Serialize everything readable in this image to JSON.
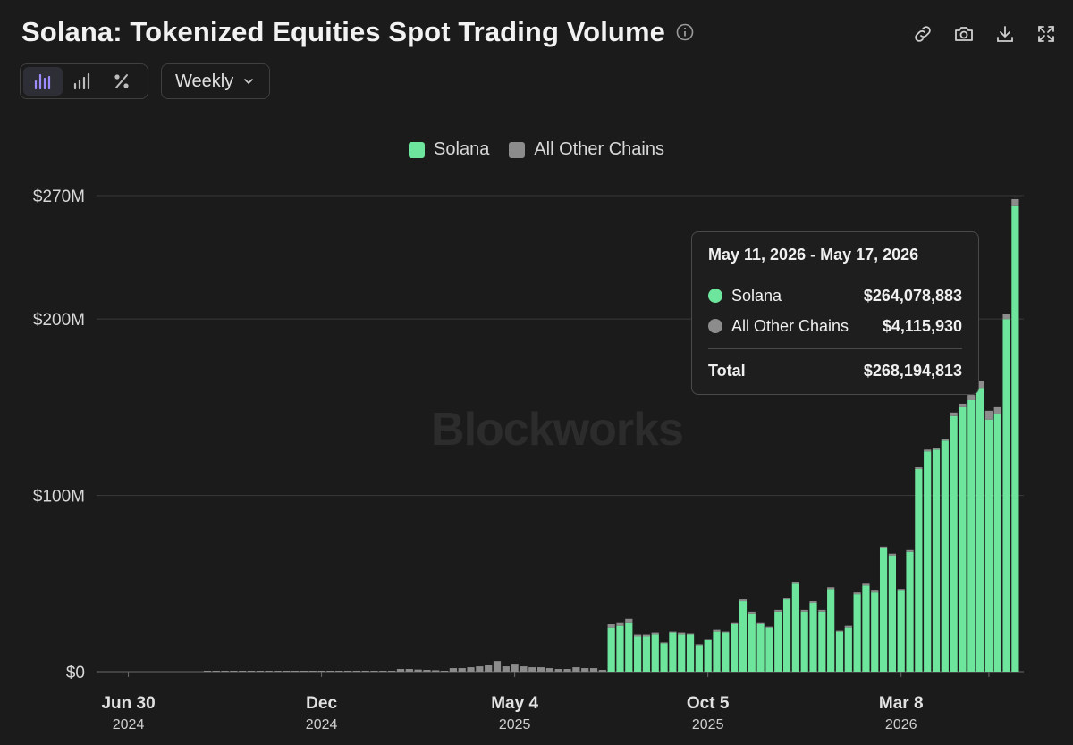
{
  "header": {
    "title": "Solana: Tokenized Equities Spot Trading Volume",
    "info_icon": "info-circle-icon",
    "icons": [
      "link-icon",
      "camera-icon",
      "download-icon",
      "expand-icon"
    ]
  },
  "controls": {
    "toggles": [
      "stacked-bars-icon",
      "bar-chart-icon",
      "percent-icon"
    ],
    "period": "Weekly"
  },
  "legend": [
    {
      "name": "Solana",
      "color": "#6ee59c"
    },
    {
      "name": "All Other Chains",
      "color": "#8c8c8c"
    }
  ],
  "watermark": "Blockworks",
  "tooltip": {
    "range": "May 11, 2026 - May 17, 2026",
    "rows": [
      {
        "name": "Solana",
        "value": "$264,078,883",
        "color": "#6ee59c"
      },
      {
        "name": "All Other Chains",
        "value": "$4,115,930",
        "color": "#8c8c8c"
      }
    ],
    "total_label": "Total",
    "total_value": "$268,194,813"
  },
  "chart_data": {
    "type": "bar",
    "stacked": true,
    "ylim": [
      0,
      270
    ],
    "y_unit": "$M",
    "y_ticks": [
      {
        "value": 0,
        "label": "$0"
      },
      {
        "value": 100,
        "label": "$100M"
      },
      {
        "value": 200,
        "label": "$200M"
      },
      {
        "value": 270,
        "label": "$270M"
      }
    ],
    "x_ticks": [
      {
        "label": "Jun 30",
        "year": "2024",
        "index": 3
      },
      {
        "label": "Dec",
        "year": "2024",
        "index": 25
      },
      {
        "label": "May 4",
        "year": "2025",
        "index": 47
      },
      {
        "label": "Oct 5",
        "year": "2025",
        "index": 69
      },
      {
        "label": "Mar 8",
        "year": "2026",
        "index": 91
      },
      {
        "label": "",
        "year": "",
        "index": 101
      }
    ],
    "series": [
      {
        "name": "Solana",
        "color": "#6ee59c",
        "values": [
          0,
          0,
          0,
          0,
          0,
          0,
          0,
          0,
          0,
          0,
          0,
          0,
          0,
          0,
          0,
          0,
          0,
          0,
          0,
          0,
          0,
          0,
          0,
          0,
          0,
          0,
          0,
          0,
          0,
          0,
          0,
          0,
          0,
          0,
          0,
          0,
          0,
          0,
          0,
          0,
          0,
          0,
          0,
          0,
          0,
          0,
          0,
          0,
          0,
          0,
          0,
          0,
          0,
          0,
          0,
          0,
          0,
          0,
          25,
          26,
          28,
          20,
          20,
          21,
          16,
          22,
          21,
          21,
          15,
          18,
          23,
          22,
          27,
          40,
          33,
          27,
          25,
          34,
          41,
          50,
          34,
          39,
          34,
          47,
          23,
          25,
          44,
          49,
          45,
          70,
          66,
          46,
          68,
          115,
          125,
          126,
          131,
          145,
          150,
          154,
          161,
          143,
          146,
          200,
          264
        ]
      },
      {
        "name": "All Other Chains",
        "color": "#8c8c8c",
        "values": [
          0,
          0,
          0,
          0,
          0,
          0,
          0,
          0,
          0,
          0,
          0,
          0,
          0.1,
          0.1,
          0.1,
          0.1,
          0.1,
          0.1,
          0.1,
          0.1,
          0.1,
          0.1,
          0.1,
          0.1,
          0.1,
          0.1,
          0.1,
          0.1,
          0.1,
          0.1,
          0.1,
          0.1,
          0.1,
          0.1,
          1.5,
          1.5,
          1.2,
          1,
          0.8,
          0.5,
          2,
          2,
          2.5,
          3,
          4,
          6,
          3,
          4.5,
          3,
          2.5,
          2.5,
          2,
          1.5,
          1.5,
          2.5,
          2,
          2,
          1,
          2,
          2,
          2,
          1,
          1,
          1,
          0.5,
          1,
          1,
          0.5,
          0.5,
          0.5,
          1,
          1,
          1,
          1,
          1,
          1,
          0.5,
          1,
          1,
          1,
          1,
          1,
          1,
          1,
          0.5,
          1,
          1,
          1,
          1,
          1,
          1,
          1,
          1,
          1,
          1,
          1,
          1,
          2,
          2,
          3,
          4,
          5,
          4,
          3,
          4
        ]
      }
    ]
  }
}
